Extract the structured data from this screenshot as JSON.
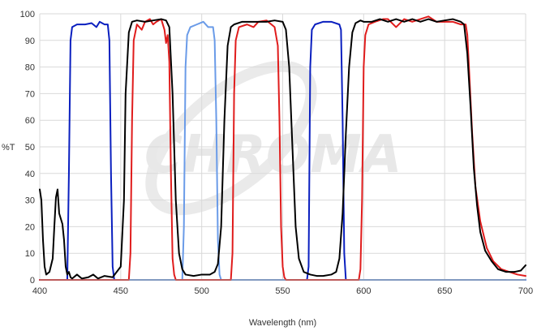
{
  "chart_data": {
    "type": "line",
    "title": "",
    "xlabel": "Wavelength (nm)",
    "ylabel": "%T",
    "xlim": [
      400,
      700
    ],
    "ylim": [
      0,
      100
    ],
    "x_ticks": [
      400,
      450,
      500,
      550,
      600,
      650,
      700
    ],
    "y_ticks": [
      0,
      10,
      20,
      30,
      40,
      50,
      60,
      70,
      80,
      90,
      100
    ],
    "grid": true,
    "legend": "none",
    "watermark": "CHROMA",
    "series": [
      {
        "color": "#0a1fbf",
        "points": [
          [
            400,
            0
          ],
          [
            417,
            0
          ],
          [
            418,
            40
          ],
          [
            419,
            90
          ],
          [
            420,
            95
          ],
          [
            423,
            96
          ],
          [
            428,
            96
          ],
          [
            432,
            96.5
          ],
          [
            435,
            95
          ],
          [
            437,
            97
          ],
          [
            440,
            96
          ],
          [
            442,
            96
          ],
          [
            443,
            90
          ],
          [
            444,
            40
          ],
          [
            445,
            5
          ],
          [
            446,
            0
          ],
          [
            565,
            0
          ],
          [
            566,
            5
          ],
          [
            567,
            80
          ],
          [
            568,
            94
          ],
          [
            570,
            96
          ],
          [
            575,
            97
          ],
          [
            580,
            97
          ],
          [
            585,
            96
          ],
          [
            586,
            94
          ],
          [
            587,
            60
          ],
          [
            588,
            10
          ],
          [
            589,
            0
          ],
          [
            700,
            0
          ]
        ]
      },
      {
        "color": "#6a9be8",
        "points": [
          [
            400,
            0
          ],
          [
            488,
            0
          ],
          [
            489,
            20
          ],
          [
            490,
            80
          ],
          [
            491,
            92
          ],
          [
            493,
            95
          ],
          [
            497,
            96
          ],
          [
            501,
            97
          ],
          [
            504,
            95
          ],
          [
            507,
            95
          ],
          [
            508,
            90
          ],
          [
            509,
            60
          ],
          [
            510,
            15
          ],
          [
            511,
            2
          ],
          [
            512,
            0
          ],
          [
            700,
            0
          ]
        ]
      },
      {
        "color": "#e01c1c",
        "points": [
          [
            400,
            0
          ],
          [
            455,
            0
          ],
          [
            456,
            10
          ],
          [
            457,
            60
          ],
          [
            458,
            90
          ],
          [
            460,
            96
          ],
          [
            463,
            94
          ],
          [
            465,
            97
          ],
          [
            468,
            98
          ],
          [
            470,
            96
          ],
          [
            472,
            97
          ],
          [
            475,
            98
          ],
          [
            477,
            94
          ],
          [
            478,
            89
          ],
          [
            479,
            92
          ],
          [
            480,
            82
          ],
          [
            481,
            40
          ],
          [
            482,
            8
          ],
          [
            483,
            2
          ],
          [
            484,
            0
          ],
          [
            518,
            0
          ],
          [
            519,
            10
          ],
          [
            520,
            70
          ],
          [
            521,
            90
          ],
          [
            523,
            95
          ],
          [
            528,
            96
          ],
          [
            532,
            95
          ],
          [
            535,
            97
          ],
          [
            540,
            97.5
          ],
          [
            545,
            95
          ],
          [
            547,
            88
          ],
          [
            548,
            60
          ],
          [
            549,
            20
          ],
          [
            550,
            5
          ],
          [
            551,
            1
          ],
          [
            552,
            0
          ],
          [
            597,
            0
          ],
          [
            598,
            4
          ],
          [
            599,
            30
          ],
          [
            600,
            80
          ],
          [
            601,
            92
          ],
          [
            603,
            96
          ],
          [
            607,
            97
          ],
          [
            612,
            98
          ],
          [
            615,
            98
          ],
          [
            620,
            95
          ],
          [
            625,
            98
          ],
          [
            630,
            97
          ],
          [
            635,
            98
          ],
          [
            640,
            99
          ],
          [
            645,
            97
          ],
          [
            650,
            97
          ],
          [
            655,
            97
          ],
          [
            660,
            96
          ],
          [
            663,
            96
          ],
          [
            664,
            92
          ],
          [
            665,
            80
          ],
          [
            667,
            55
          ],
          [
            669,
            35
          ],
          [
            672,
            22
          ],
          [
            676,
            12
          ],
          [
            680,
            7
          ],
          [
            685,
            4
          ],
          [
            690,
            3
          ],
          [
            695,
            2
          ],
          [
            700,
            1.5
          ]
        ]
      },
      {
        "color": "#000000",
        "points": [
          [
            400,
            34
          ],
          [
            401,
            30
          ],
          [
            402,
            15
          ],
          [
            403,
            5
          ],
          [
            404,
            2
          ],
          [
            406,
            3
          ],
          [
            408,
            8
          ],
          [
            409,
            20
          ],
          [
            410,
            31
          ],
          [
            411,
            34
          ],
          [
            412,
            25
          ],
          [
            414,
            21
          ],
          [
            415,
            15
          ],
          [
            416,
            5
          ],
          [
            417,
            2
          ],
          [
            418,
            3
          ],
          [
            419,
            1
          ],
          [
            420,
            0.5
          ],
          [
            423,
            2
          ],
          [
            426,
            0.5
          ],
          [
            430,
            1
          ],
          [
            433,
            2
          ],
          [
            436,
            0.5
          ],
          [
            440,
            1.5
          ],
          [
            445,
            1
          ],
          [
            450,
            5
          ],
          [
            452,
            30
          ],
          [
            453,
            70
          ],
          [
            455,
            93
          ],
          [
            457,
            97
          ],
          [
            460,
            97.5
          ],
          [
            465,
            97
          ],
          [
            470,
            97.5
          ],
          [
            475,
            98
          ],
          [
            478,
            97.5
          ],
          [
            480,
            95
          ],
          [
            482,
            70
          ],
          [
            484,
            30
          ],
          [
            486,
            10
          ],
          [
            488,
            4
          ],
          [
            490,
            2
          ],
          [
            495,
            1.5
          ],
          [
            500,
            2
          ],
          [
            505,
            2
          ],
          [
            508,
            3
          ],
          [
            510,
            6
          ],
          [
            512,
            20
          ],
          [
            514,
            60
          ],
          [
            516,
            88
          ],
          [
            518,
            95
          ],
          [
            520,
            96
          ],
          [
            525,
            97
          ],
          [
            530,
            97
          ],
          [
            535,
            97
          ],
          [
            540,
            97
          ],
          [
            545,
            97.5
          ],
          [
            550,
            97
          ],
          [
            552,
            94
          ],
          [
            554,
            80
          ],
          [
            556,
            50
          ],
          [
            558,
            20
          ],
          [
            560,
            8
          ],
          [
            563,
            3
          ],
          [
            567,
            2
          ],
          [
            571,
            1.5
          ],
          [
            575,
            1.5
          ],
          [
            580,
            2
          ],
          [
            583,
            3
          ],
          [
            585,
            8
          ],
          [
            587,
            25
          ],
          [
            589,
            55
          ],
          [
            591,
            80
          ],
          [
            593,
            93
          ],
          [
            595,
            96.5
          ],
          [
            598,
            97.5
          ],
          [
            600,
            97
          ],
          [
            605,
            97
          ],
          [
            610,
            98
          ],
          [
            615,
            97
          ],
          [
            620,
            98
          ],
          [
            625,
            97
          ],
          [
            630,
            98
          ],
          [
            635,
            97
          ],
          [
            640,
            98
          ],
          [
            645,
            97
          ],
          [
            650,
            97.5
          ],
          [
            655,
            98
          ],
          [
            660,
            97
          ],
          [
            662,
            96
          ],
          [
            664,
            85
          ],
          [
            666,
            65
          ],
          [
            668,
            42
          ],
          [
            670,
            28
          ],
          [
            672,
            18
          ],
          [
            675,
            11
          ],
          [
            679,
            7
          ],
          [
            683,
            4
          ],
          [
            688,
            3
          ],
          [
            693,
            3
          ],
          [
            697,
            3.5
          ],
          [
            700,
            5.5
          ]
        ]
      }
    ]
  }
}
